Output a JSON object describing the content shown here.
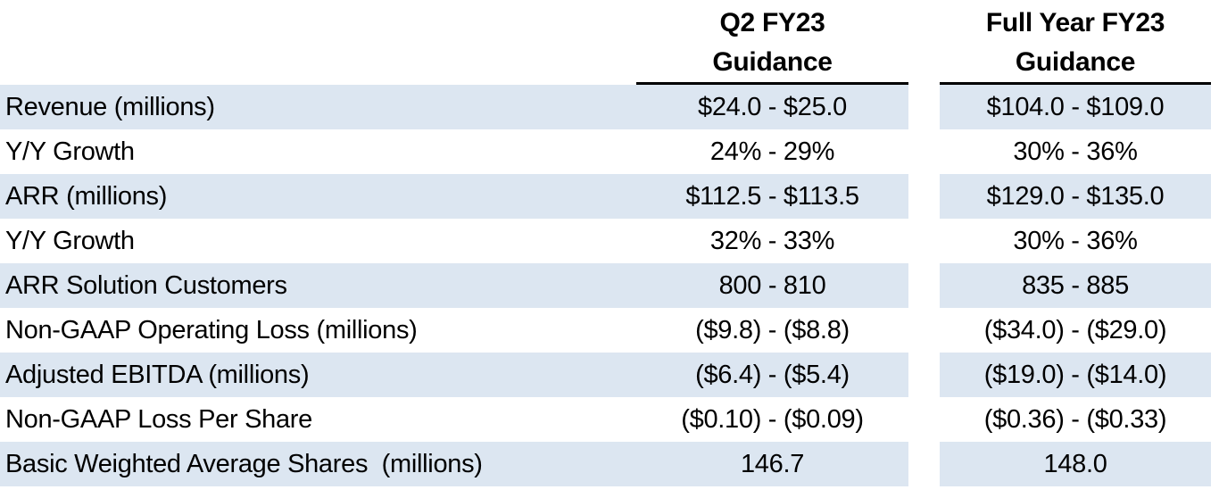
{
  "table": {
    "title": "Financial guidance table",
    "columns": {
      "q2": {
        "line1": "Q2 FY23",
        "line2": "Guidance"
      },
      "full_year": {
        "line1": "Full Year FY23",
        "line2": "Guidance"
      }
    },
    "rows": [
      {
        "label": "Revenue (millions)",
        "q2": "$24.0 - $25.0",
        "full_year": "$104.0 - $109.0"
      },
      {
        "label": "Y/Y Growth",
        "q2": "24% - 29%",
        "full_year": "30% - 36%"
      },
      {
        "label": "ARR (millions)",
        "q2": "$112.5 - $113.5",
        "full_year": "$129.0 - $135.0"
      },
      {
        "label": "Y/Y Growth",
        "q2": "32% - 33%",
        "full_year": "30% - 36%"
      },
      {
        "label": "ARR Solution Customers",
        "q2": "800 - 810",
        "full_year": "835 - 885"
      },
      {
        "label": "Non-GAAP Operating Loss (millions)",
        "q2": "($9.8) - ($8.8)",
        "full_year": "($34.0) - ($29.0)"
      },
      {
        "label": "Adjusted EBITDA (millions)",
        "q2": "($6.4) - ($5.4)",
        "full_year": "($19.0) - ($14.0)"
      },
      {
        "label": "Non-GAAP Loss Per Share",
        "q2": "($0.10) - ($0.09)",
        "full_year": "($0.36) - ($0.33)"
      },
      {
        "label": "Basic Weighted Average Shares  (millions)",
        "q2": "146.7",
        "full_year": "148.0"
      }
    ],
    "colors": {
      "row_highlight": "#dce6f1",
      "text": "#000000",
      "rule": "#000000",
      "background": "#ffffff"
    }
  }
}
